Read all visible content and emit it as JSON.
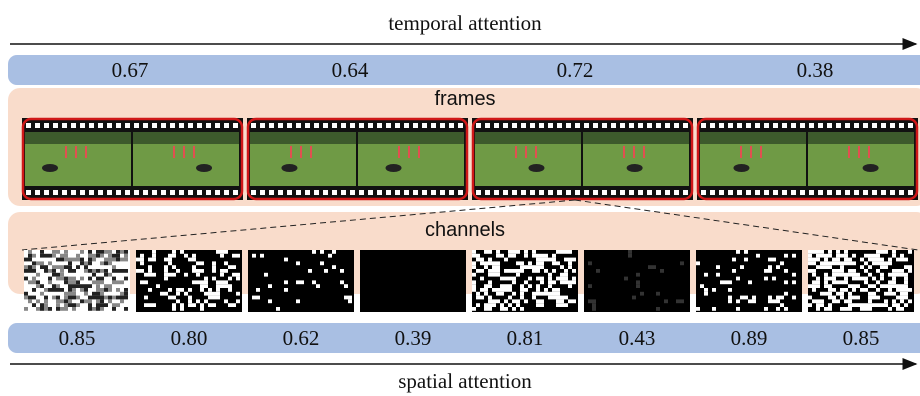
{
  "temporal": {
    "label": "temporal attention",
    "weights": [
      "0.67",
      "0.64",
      "0.72",
      "0.38"
    ]
  },
  "frames_label": "frames",
  "channels_label": "channels",
  "spatial": {
    "label": "spatial attention",
    "weights": [
      "0.85",
      "0.80",
      "0.62",
      "0.39",
      "0.81",
      "0.43",
      "0.89",
      "0.85"
    ]
  }
}
